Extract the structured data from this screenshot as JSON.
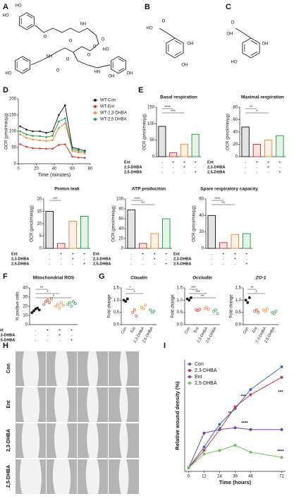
{
  "panels": [
    "A",
    "B",
    "C",
    "D",
    "E",
    "F",
    "G",
    "H",
    "I"
  ],
  "structures": {
    "A": [
      "HO",
      "HO",
      "O",
      "NH",
      "O",
      "O",
      "O",
      "O",
      "NH",
      "O",
      "HN",
      "O",
      "OH",
      "HO",
      "HO",
      "OH"
    ],
    "B": [
      "HO",
      "O",
      "OH",
      "OH"
    ],
    "C": [
      "O",
      "OH",
      "HO",
      "OH"
    ]
  },
  "treatments": {
    "names": [
      "Ent",
      "2,3-DHBA",
      "2,5-DHBA"
    ],
    "signs": [
      [
        "-",
        "+",
        "+",
        "+"
      ],
      [
        "-",
        "-",
        "+",
        "-"
      ],
      [
        "-",
        "-",
        "-",
        "+"
      ]
    ]
  },
  "wound_rows": [
    "Con",
    "Ent",
    "2,3-DHBA",
    "2,5-DHBA"
  ],
  "chart_data": [
    {
      "type": "line",
      "x_label": "Time (minutes)",
      "y_label": "OCR (pmol/min/µg)",
      "x": [
        2,
        9,
        16,
        24,
        31,
        38,
        45,
        52,
        60,
        67,
        74
      ],
      "xlim": [
        0,
        80
      ],
      "xticks": [
        0,
        20,
        40,
        60,
        80
      ],
      "ylim": [
        0,
        200
      ],
      "yticks": [
        0,
        50,
        100,
        150,
        200
      ],
      "series": [
        {
          "name": "WT-Con",
          "color": "#222222",
          "values": [
            115,
            105,
            100,
            100,
            95,
            100,
            150,
            180,
            50,
            45,
            40
          ]
        },
        {
          "name": "WT-Ent",
          "color": "#e0332b",
          "values": [
            60,
            52,
            48,
            47,
            46,
            46,
            58,
            60,
            22,
            19,
            18
          ]
        },
        {
          "name": "WT-2,3-DHBA",
          "color": "#f08a3c",
          "values": [
            90,
            80,
            75,
            72,
            70,
            72,
            110,
            125,
            40,
            35,
            32
          ]
        },
        {
          "name": "WT-2,5 DHBA",
          "color": "#2e9e4e",
          "values": [
            100,
            90,
            86,
            85,
            82,
            86,
            130,
            140,
            45,
            40,
            36
          ]
        }
      ]
    },
    {
      "type": "bar",
      "title": "Basal respiration",
      "y_label": "OCR (pmol/min/µg)",
      "ylim": [
        0,
        150
      ],
      "yticks": [
        0,
        50,
        100,
        150
      ],
      "values": [
        92,
        12,
        38,
        68
      ],
      "colors": [
        "#222222",
        "#e0332b",
        "#f08a3c",
        "#2e9e4e"
      ],
      "annotations": [
        "****",
        "***"
      ]
    },
    {
      "type": "bar",
      "title": "Maximal respiration",
      "y_label": "OCR (pmol/min/µg)",
      "ylim": [
        0,
        80
      ],
      "yticks": [
        0,
        20,
        40,
        60,
        80
      ],
      "values": [
        48,
        20,
        27,
        34
      ],
      "colors": [
        "#222222",
        "#e0332b",
        "#f08a3c",
        "#2e9e4e"
      ],
      "annotations": [
        "**",
        "*"
      ]
    },
    {
      "type": "bar",
      "title": "Proton leak",
      "y_label": "OCR (pmol/min/µg)",
      "ylim": [
        0,
        20
      ],
      "yticks": [
        0,
        5,
        10,
        15,
        20
      ],
      "values": [
        15,
        2,
        11,
        13
      ],
      "colors": [
        "#222222",
        "#e0332b",
        "#f08a3c",
        "#2e9e4e"
      ],
      "annotations": [
        "***"
      ]
    },
    {
      "type": "bar",
      "title": "ATP production",
      "y_label": "OCR (pmol/min/µg)",
      "ylim": [
        0,
        100
      ],
      "yticks": [
        0,
        20,
        40,
        60,
        80,
        100
      ],
      "values": [
        78,
        10,
        30,
        60
      ],
      "colors": [
        "#222222",
        "#e0332b",
        "#f08a3c",
        "#2e9e4e"
      ],
      "annotations": [
        "****",
        "**"
      ]
    },
    {
      "type": "bar",
      "title": "Spare respiratory capacity",
      "y_label": "OCR (pmol/min/µg)",
      "ylim": [
        0,
        60
      ],
      "yticks": [
        0,
        20,
        40,
        60
      ],
      "values": [
        40,
        7,
        17,
        18
      ],
      "colors": [
        "#222222",
        "#e0332b",
        "#f08a3c",
        "#2e9e4e"
      ],
      "annotations": [
        "****",
        "**"
      ]
    },
    {
      "type": "strip",
      "title": "Mitochondrial ROS",
      "y_label": "% positive cells",
      "ylim": [
        0,
        40
      ],
      "yticks": [
        0,
        10,
        20,
        30,
        40
      ],
      "groups": [
        [
          13,
          15,
          17,
          18,
          16
        ],
        [
          22,
          25,
          27,
          24,
          28
        ],
        [
          20,
          22,
          18,
          24,
          21
        ],
        [
          22,
          24,
          20,
          25,
          23
        ]
      ],
      "colors": [
        "#222222",
        "#e0332b",
        "#f08a3c",
        "#2e9e4e"
      ],
      "annotations": [
        "**",
        "*",
        "*"
      ]
    },
    {
      "type": "strip",
      "title": "Claudin",
      "y_label": "Fold change",
      "categories": [
        "Con",
        "Ent",
        "2,3-DHBA",
        "2,5-DHBA"
      ],
      "ylim": [
        0,
        1.5
      ],
      "yticks": [
        {
          "value": 0,
          "label": "0.0"
        },
        0.5,
        {
          "value": 1,
          "label": "1.0"
        },
        1.5
      ],
      "groups": [
        [
          1.0,
          0.95,
          1.05
        ],
        [
          0.5,
          0.6,
          0.35
        ],
        [
          0.7,
          0.65,
          0.8
        ],
        [
          0.6,
          0.5,
          0.55
        ]
      ],
      "colors": [
        "#222222",
        "#e0332b",
        "#f08a3c",
        "#2e9e4e"
      ],
      "annotations": [
        "*",
        "*"
      ]
    },
    {
      "type": "strip",
      "title": "Occludin",
      "y_label": "Fold change",
      "categories": [
        "Con",
        "Ent",
        "2,3-DHBA",
        "2,5-DHBA"
      ],
      "ylim": [
        0,
        1.5
      ],
      "yticks": [
        {
          "value": 0,
          "label": "0.0"
        },
        0.5,
        {
          "value": 1,
          "label": "1.0"
        },
        1.5
      ],
      "groups": [
        [
          1.05,
          1.0,
          1.1
        ],
        [
          0.6,
          0.58,
          0.62
        ],
        [
          0.65,
          0.7,
          0.62
        ],
        [
          0.55,
          0.6,
          0.45
        ]
      ],
      "colors": [
        "#222222",
        "#e0332b",
        "#f08a3c",
        "#2e9e4e"
      ],
      "annotations": [
        "***",
        "***",
        "**"
      ]
    },
    {
      "type": "strip",
      "title": "ZO-1",
      "y_label": "Fold change",
      "categories": [
        "Con",
        "Ent",
        "2,3-DHBA",
        "2,5-DHBA"
      ],
      "ylim": [
        0,
        1.5
      ],
      "yticks": [
        {
          "value": 0,
          "label": "0.0"
        },
        0.5,
        {
          "value": 1,
          "label": "1.0"
        },
        1.5
      ],
      "groups": [
        [
          1.0,
          0.9,
          1.1
        ],
        [
          0.55,
          0.6,
          0.5
        ],
        [
          0.6,
          0.55,
          0.65
        ],
        [
          0.5,
          0.45,
          0.55
        ]
      ],
      "colors": [
        "#222222",
        "#e0332b",
        "#f08a3c",
        "#2e9e4e"
      ],
      "annotations": [
        "**",
        "*"
      ]
    },
    {
      "type": "line",
      "x_label": "Time (hours)",
      "y_label": "Relative wound density (%)",
      "x": [
        0,
        12,
        24,
        36,
        48,
        72
      ],
      "xlim": [
        -3,
        75
      ],
      "xticks": [
        0,
        12,
        24,
        36,
        48,
        72
      ],
      "ylim": [
        -2,
        62
      ],
      "series": [
        {
          "name": "Con",
          "color": "#3b6eb5",
          "values": [
            0,
            12,
            25,
            34,
            45,
            58
          ]
        },
        {
          "name": "2,3-DHBA",
          "color": "#c0394b",
          "values": [
            0,
            10,
            22,
            35,
            42,
            52
          ]
        },
        {
          "name": "Ent",
          "color": "#7b3fa0",
          "values": [
            0,
            20,
            22,
            23,
            22,
            22
          ]
        },
        {
          "name": "2,5-DHBA",
          "color": "#6cbf5a",
          "values": [
            0,
            8,
            10,
            13,
            9,
            6
          ]
        }
      ],
      "annotations": [
        "*",
        "**",
        "***",
        "****",
        "***",
        "****"
      ]
    }
  ]
}
